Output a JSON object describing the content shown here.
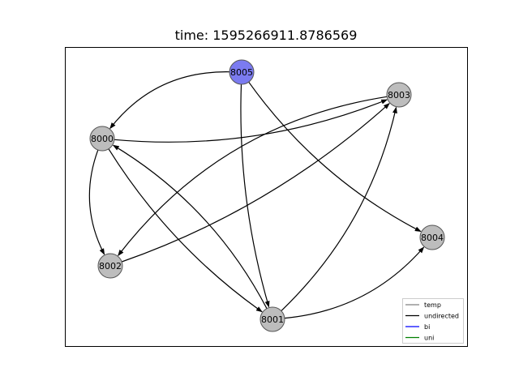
{
  "title": "time: 1595266911.8786569",
  "nodes": [
    {
      "id": "8005",
      "label": "8005",
      "color": "#7b7bf0"
    },
    {
      "id": "8003",
      "label": "8003",
      "color": "#bdbdbd"
    },
    {
      "id": "8000",
      "label": "8000",
      "color": "#bdbdbd"
    },
    {
      "id": "8004",
      "label": "8004",
      "color": "#bdbdbd"
    },
    {
      "id": "8002",
      "label": "8002",
      "color": "#bdbdbd"
    },
    {
      "id": "8001",
      "label": "8001",
      "color": "#bdbdbd"
    }
  ],
  "edges": [
    {
      "from": "8005",
      "to": "8000"
    },
    {
      "from": "8005",
      "to": "8004"
    },
    {
      "from": "8005",
      "to": "8001"
    },
    {
      "from": "8000",
      "to": "8003"
    },
    {
      "from": "8000",
      "to": "8002"
    },
    {
      "from": "8000",
      "to": "8001"
    },
    {
      "from": "8001",
      "to": "8000"
    },
    {
      "from": "8003",
      "to": "8002"
    },
    {
      "from": "8002",
      "to": "8003"
    },
    {
      "from": "8001",
      "to": "8003"
    },
    {
      "from": "8001",
      "to": "8004"
    }
  ],
  "legend": [
    {
      "label": "temp",
      "color": "#808080"
    },
    {
      "label": "undirected",
      "color": "#000000"
    },
    {
      "label": "bi",
      "color": "#0000ff"
    },
    {
      "label": "uni",
      "color": "#008000"
    }
  ]
}
